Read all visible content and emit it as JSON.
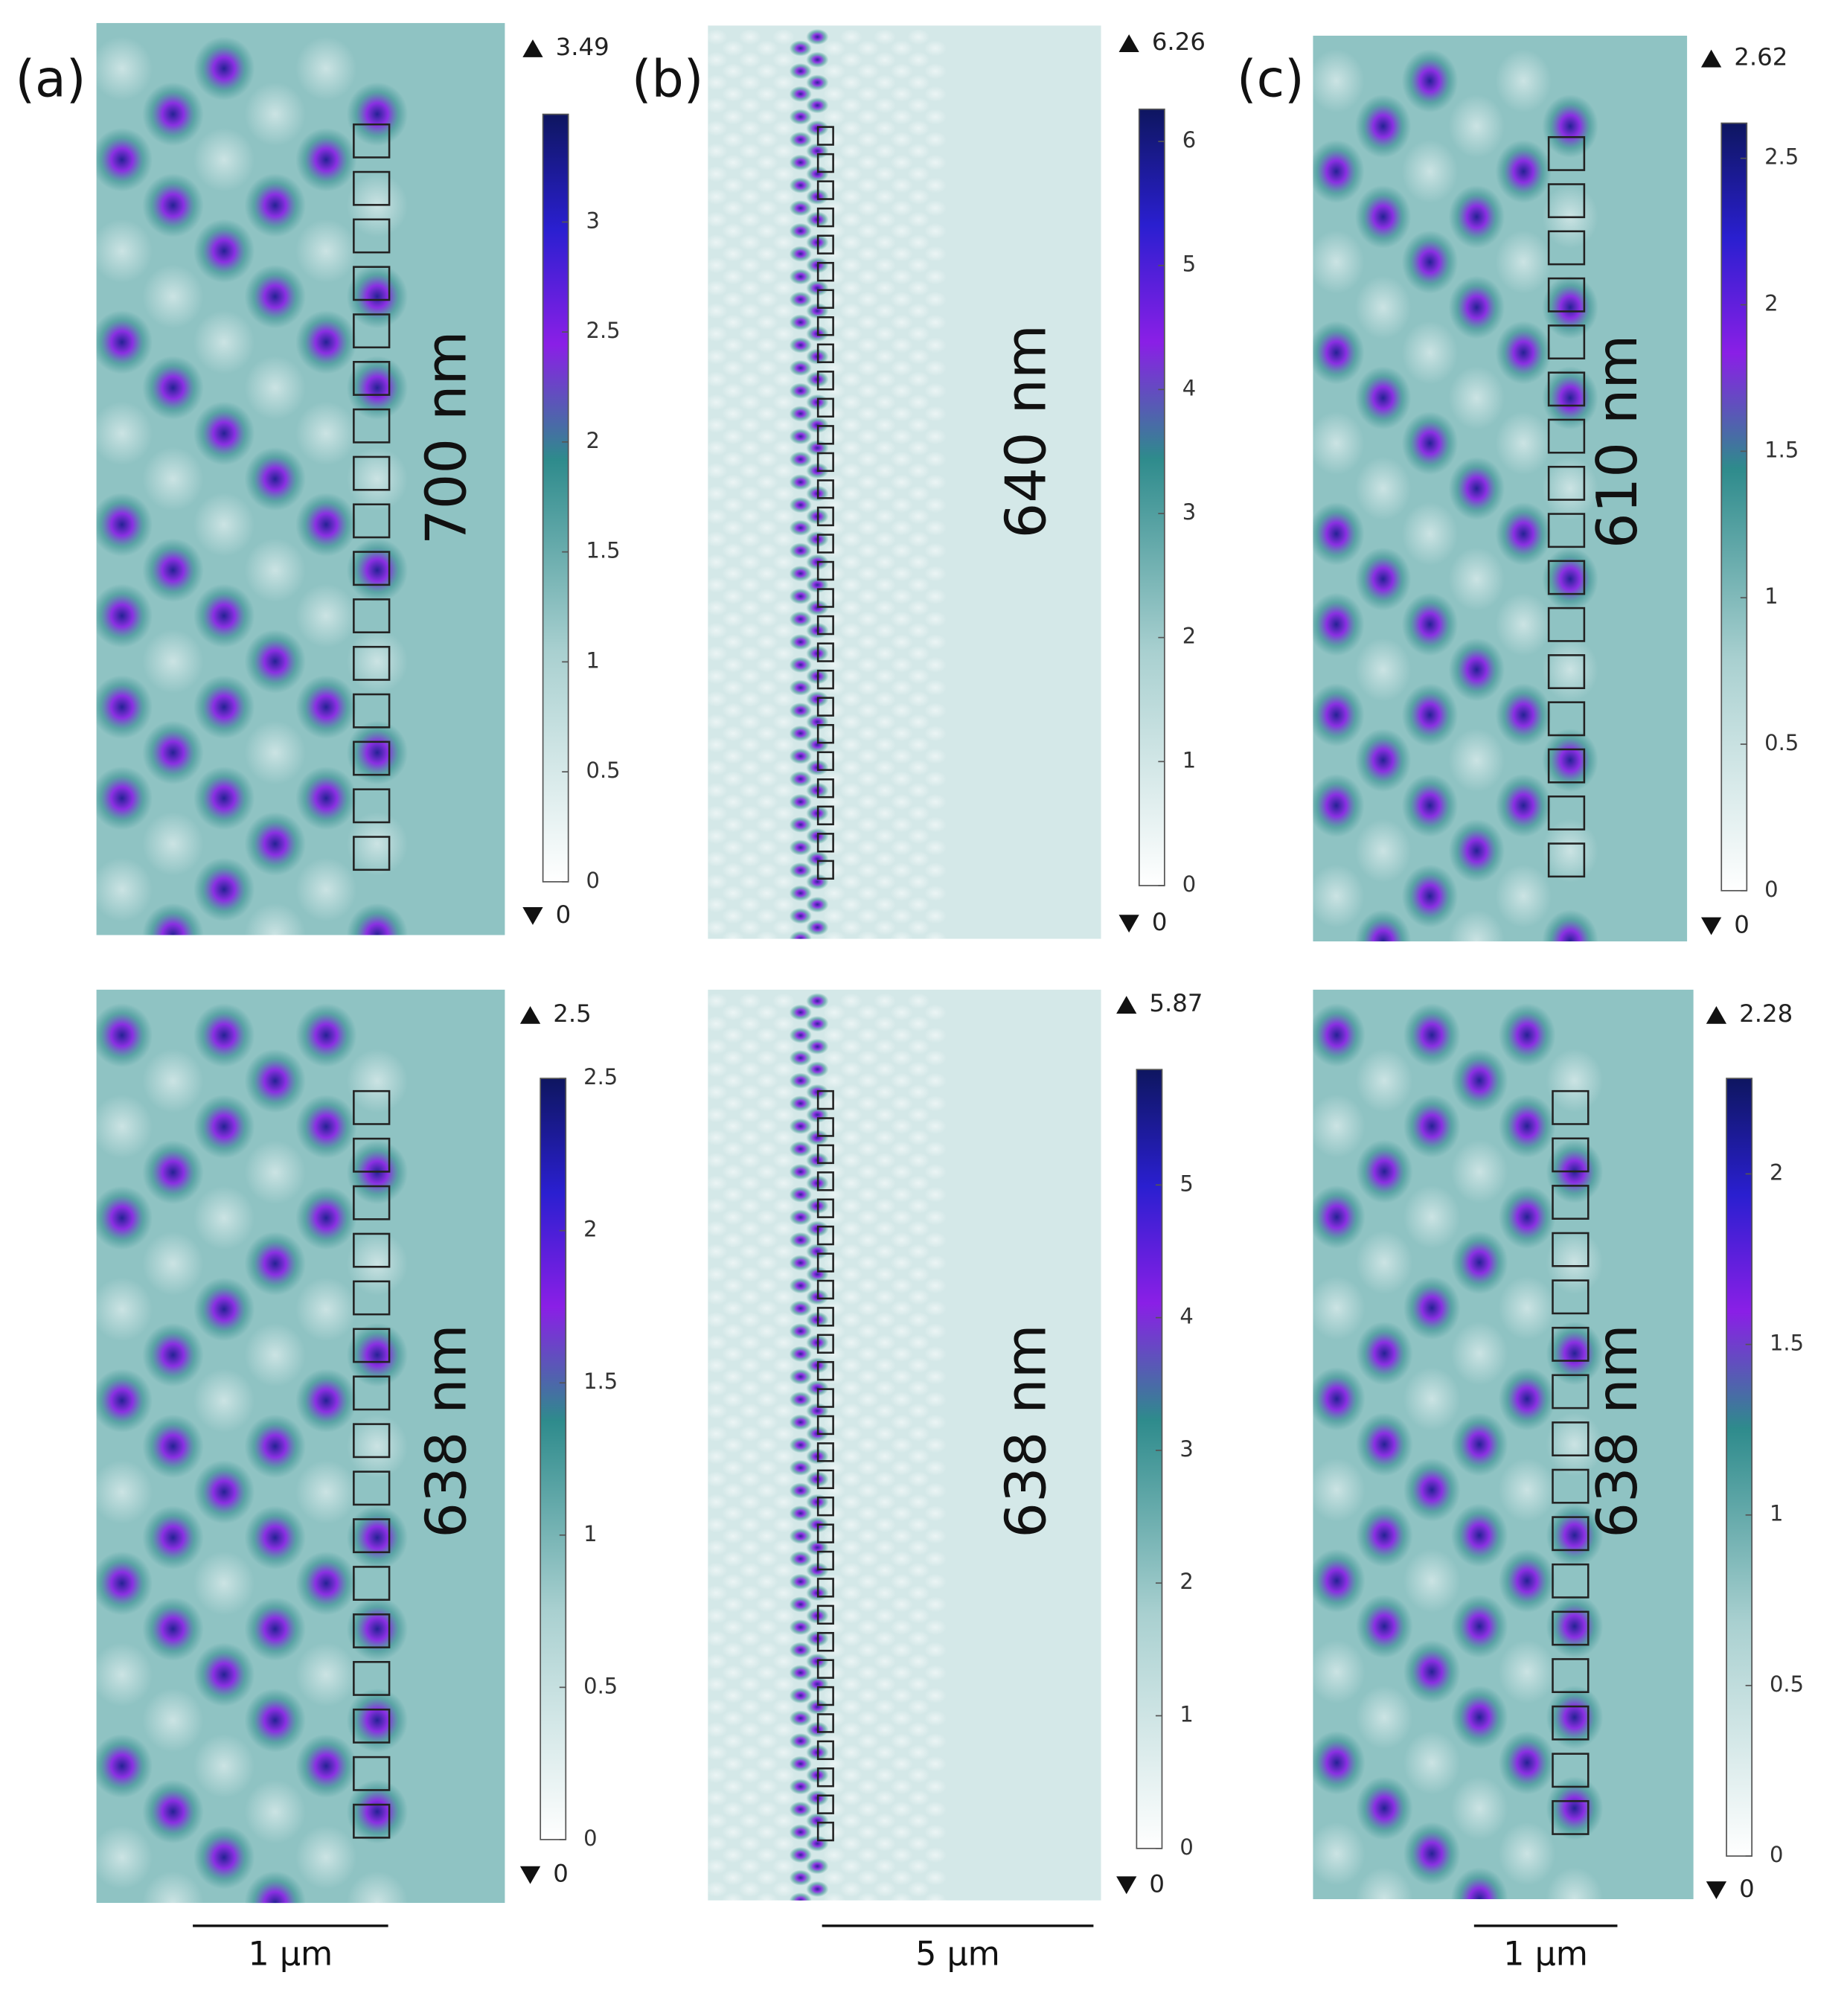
{
  "columns": [
    {
      "label": "(a)",
      "scale_bar": "1 µm",
      "panels": [
        {
          "wavelength": "700 nm",
          "colorbar": {
            "range": [
              0,
              3.49
            ],
            "ticks": [
              0,
              0.5,
              1,
              1.5,
              2,
              2.5,
              3
            ]
          }
        },
        {
          "wavelength": "638 nm",
          "colorbar": {
            "range": [
              0,
              2.5
            ],
            "ticks": [
              0,
              0.5,
              1,
              1.5,
              2,
              2.5
            ]
          }
        }
      ]
    },
    {
      "label": "(b)",
      "scale_bar": "5 µm",
      "panels": [
        {
          "wavelength": "640 nm",
          "colorbar": {
            "range": [
              0,
              6.26
            ],
            "ticks": [
              0,
              1,
              2,
              3,
              4,
              5,
              6
            ]
          }
        },
        {
          "wavelength": "638 nm",
          "colorbar": {
            "range": [
              0,
              5.87
            ],
            "ticks": [
              0,
              1,
              2,
              3,
              4,
              5
            ]
          }
        }
      ]
    },
    {
      "label": "(c)",
      "scale_bar": "1 µm",
      "panels": [
        {
          "wavelength": "610 nm",
          "colorbar": {
            "range": [
              0,
              2.62
            ],
            "ticks": [
              0,
              0.5,
              1,
              1.5,
              2,
              2.5
            ]
          }
        },
        {
          "wavelength": "638 nm",
          "colorbar": {
            "range": [
              0,
              2.28
            ],
            "ticks": [
              0,
              0.5,
              1,
              1.5,
              2
            ]
          }
        }
      ]
    }
  ]
}
